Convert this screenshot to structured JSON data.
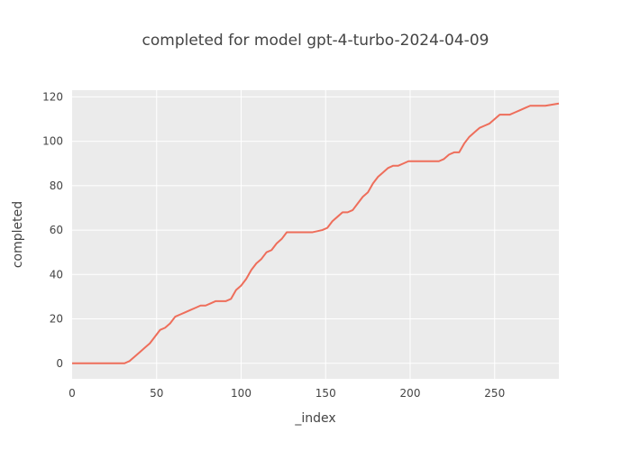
{
  "chart_data": {
    "type": "line",
    "title": "completed for model gpt-4-turbo-2024-04-09",
    "xlabel": "_index",
    "ylabel": "completed",
    "xlim": [
      0,
      288
    ],
    "ylim": [
      -7,
      123
    ],
    "xticks": [
      0,
      50,
      100,
      150,
      200,
      250
    ],
    "yticks": [
      0,
      20,
      40,
      60,
      80,
      100,
      120
    ],
    "grid": true,
    "background": "#ebebeb",
    "line_color": "#ee6e5b",
    "series": [
      {
        "x": [
          0,
          31,
          34,
          37,
          40,
          43,
          46,
          49,
          52,
          55,
          58,
          61,
          64,
          67,
          70,
          73,
          76,
          79,
          82,
          85,
          88,
          91,
          94,
          97,
          100,
          103,
          106,
          109,
          112,
          115,
          118,
          121,
          124,
          127,
          130,
          136,
          142,
          148,
          151,
          154,
          157,
          160,
          163,
          166,
          169,
          172,
          175,
          178,
          181,
          184,
          187,
          190,
          193,
          196,
          199,
          205,
          211,
          217,
          220,
          223,
          226,
          229,
          232,
          235,
          238,
          241,
          244,
          247,
          250,
          253,
          256,
          259,
          262,
          265,
          268,
          271,
          274,
          280,
          288
        ],
        "y": [
          0,
          0,
          1,
          3,
          5,
          7,
          9,
          12,
          15,
          16,
          18,
          21,
          22,
          23,
          24,
          25,
          26,
          26,
          27,
          28,
          28,
          28,
          29,
          33,
          35,
          38,
          42,
          45,
          47,
          50,
          51,
          54,
          56,
          59,
          59,
          59,
          59,
          60,
          61,
          64,
          66,
          68,
          68,
          69,
          72,
          75,
          77,
          81,
          84,
          86,
          88,
          89,
          89,
          90,
          91,
          91,
          91,
          91,
          92,
          94,
          95,
          95,
          99,
          102,
          104,
          106,
          107,
          108,
          110,
          112,
          112,
          112,
          113,
          114,
          115,
          116,
          116,
          116,
          117
        ]
      }
    ]
  }
}
